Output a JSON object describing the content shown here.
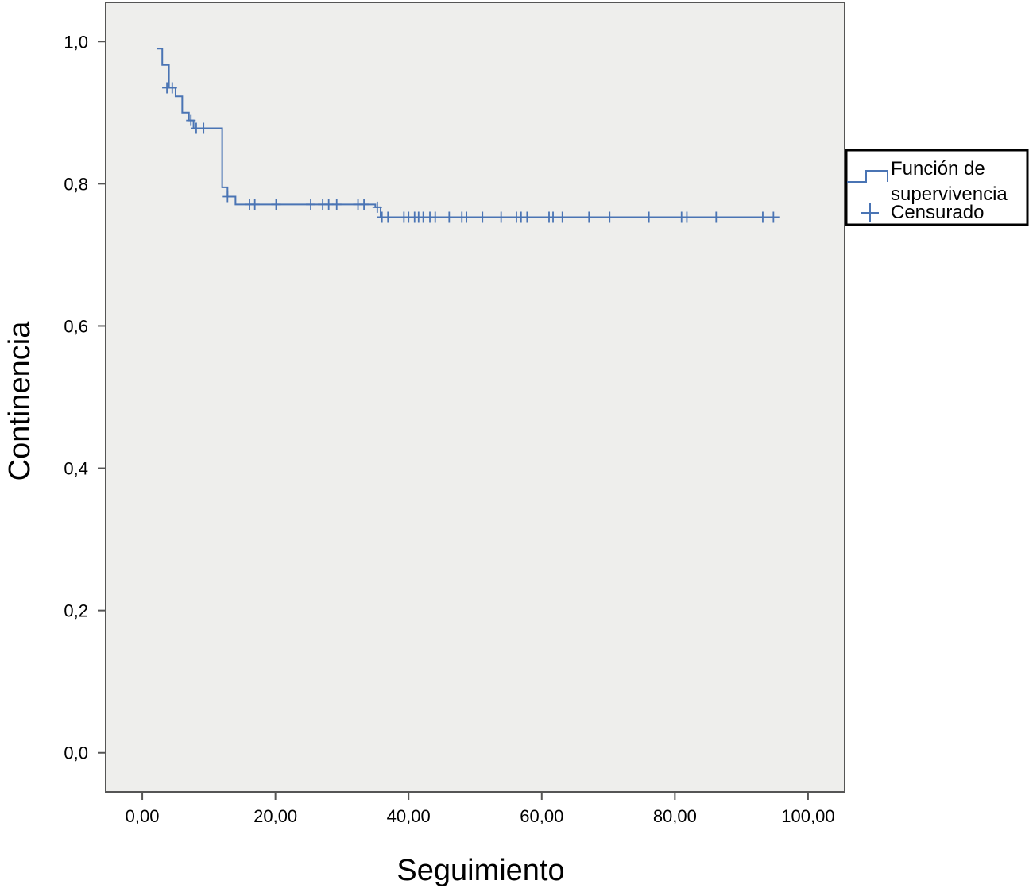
{
  "chart_data": {
    "type": "line",
    "title": "",
    "xlabel": "Seguimiento",
    "ylabel": "Continencia",
    "xlim": [
      -5.5,
      105.5
    ],
    "ylim": [
      -0.055,
      1.055
    ],
    "x_ticks": [
      {
        "value": 0,
        "label": "0,00"
      },
      {
        "value": 20,
        "label": "20,00"
      },
      {
        "value": 40,
        "label": "40,00"
      },
      {
        "value": 60,
        "label": "60,00"
      },
      {
        "value": 80,
        "label": "80,00"
      },
      {
        "value": 100,
        "label": "100,00"
      }
    ],
    "y_ticks": [
      {
        "value": 0.0,
        "label": "0,0"
      },
      {
        "value": 0.2,
        "label": "0,2"
      },
      {
        "value": 0.4,
        "label": "0,4"
      },
      {
        "value": 0.6,
        "label": "0,6"
      },
      {
        "value": 0.8,
        "label": "0,8"
      },
      {
        "value": 1.0,
        "label": "1,0"
      }
    ],
    "grid": false,
    "legend_position": "right",
    "legend": {
      "survival_label_line1": "Función de",
      "survival_label_line2": "supervivencia",
      "censored_label": "Censurado"
    },
    "series": [
      {
        "name": "Función de supervivencia",
        "step": "post",
        "x": [
          2.2,
          3.0,
          4.0,
          5.0,
          6.0,
          7.0,
          7.7,
          12.0,
          12.8,
          14.0,
          35.0,
          35.8,
          95.8
        ],
        "y": [
          0.99,
          0.967,
          0.935,
          0.923,
          0.9,
          0.889,
          0.878,
          0.795,
          0.782,
          0.771,
          0.767,
          0.753,
          0.753
        ]
      },
      {
        "name": "Censurado",
        "x": [
          3.7,
          4.5,
          7.3,
          8.1,
          9.2,
          12.8,
          16.1,
          16.9,
          20.1,
          25.3,
          27.1,
          28.0,
          29.2,
          32.4,
          33.3,
          35.3,
          36.0,
          36.9,
          39.3,
          40.0,
          40.9,
          41.5,
          42.2,
          43.2,
          44.0,
          46.1,
          48.0,
          48.7,
          51.1,
          53.9,
          56.2,
          56.9,
          57.8,
          61.1,
          61.7,
          63.1,
          67.1,
          70.2,
          76.1,
          81.0,
          81.8,
          86.2,
          93.2,
          94.8
        ],
        "y": [
          0.935,
          0.935,
          0.889,
          0.878,
          0.878,
          0.782,
          0.771,
          0.771,
          0.771,
          0.771,
          0.771,
          0.771,
          0.771,
          0.771,
          0.771,
          0.767,
          0.753,
          0.753,
          0.753,
          0.753,
          0.753,
          0.753,
          0.753,
          0.753,
          0.753,
          0.753,
          0.753,
          0.753,
          0.753,
          0.753,
          0.753,
          0.753,
          0.753,
          0.753,
          0.753,
          0.753,
          0.753,
          0.753,
          0.753,
          0.753,
          0.753,
          0.753,
          0.753,
          0.753
        ]
      }
    ],
    "colors": {
      "line": "#4a74b4",
      "plot_background": "#eeeeec",
      "frame": "#555555"
    }
  }
}
